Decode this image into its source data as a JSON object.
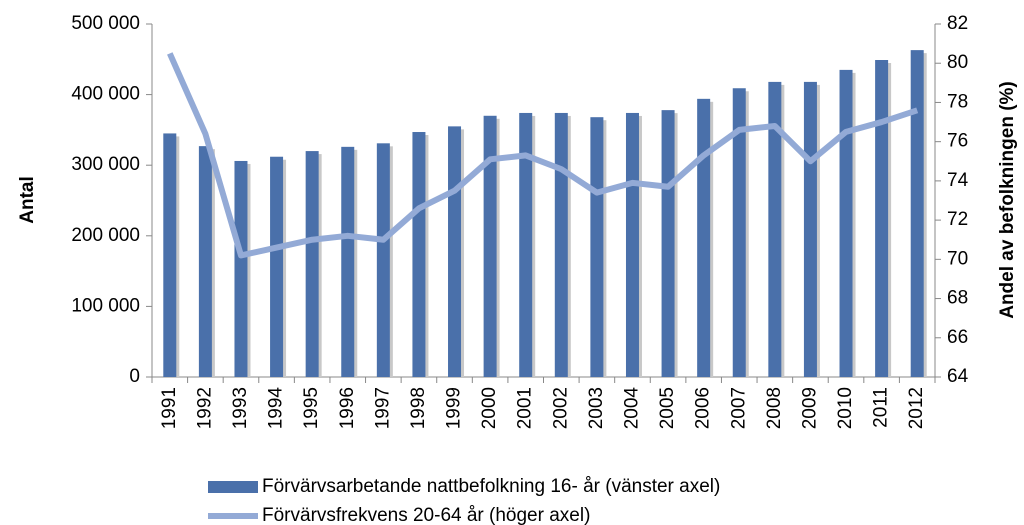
{
  "chart_data": {
    "type": "combo",
    "y_label": "Antal",
    "y2_label": "Andel av befolkningen (%)",
    "categories": [
      "1991",
      "1992",
      "1993",
      "1994",
      "1995",
      "1996",
      "1997",
      "1998",
      "1999",
      "2000",
      "2001",
      "2002",
      "2003",
      "2004",
      "2005",
      "2006",
      "2007",
      "2008",
      "2009",
      "2010",
      "2011",
      "2012"
    ],
    "series": [
      {
        "name": "Förvärvsarbetande nattbefolkning 16- år (vänster axel)",
        "type": "bar",
        "color": "#4a70aa",
        "axis": "y",
        "values": [
          345000,
          327000,
          306000,
          312000,
          320000,
          326000,
          331000,
          347000,
          355000,
          370000,
          374000,
          374000,
          368000,
          374000,
          378000,
          394000,
          409000,
          418000,
          418000,
          435000,
          449000,
          463000
        ]
      },
      {
        "name": "Förvärvsfrekvens 20-64 år (höger axel)",
        "type": "line",
        "color": "#93aad6",
        "axis": "y2",
        "values": [
          80.5,
          76.4,
          70.2,
          70.6,
          71.0,
          71.2,
          71.0,
          72.6,
          73.5,
          75.1,
          75.3,
          74.6,
          73.4,
          73.9,
          73.7,
          75.3,
          76.6,
          76.8,
          75.0,
          76.5,
          77.0,
          77.6
        ]
      }
    ],
    "ylim": [
      0,
      500000
    ],
    "yticks": [
      0,
      {
        "value": 100000,
        "label": "100 000"
      },
      {
        "value": 200000,
        "label": "200 000"
      },
      {
        "value": 300000,
        "label": "300 000"
      },
      {
        "value": 400000,
        "label": "400 000"
      },
      {
        "value": 500000,
        "label": "500 000"
      }
    ],
    "y2lim": [
      64,
      82
    ],
    "y2ticks": [
      64,
      66,
      68,
      70,
      72,
      74,
      76,
      78,
      80,
      82
    ]
  }
}
